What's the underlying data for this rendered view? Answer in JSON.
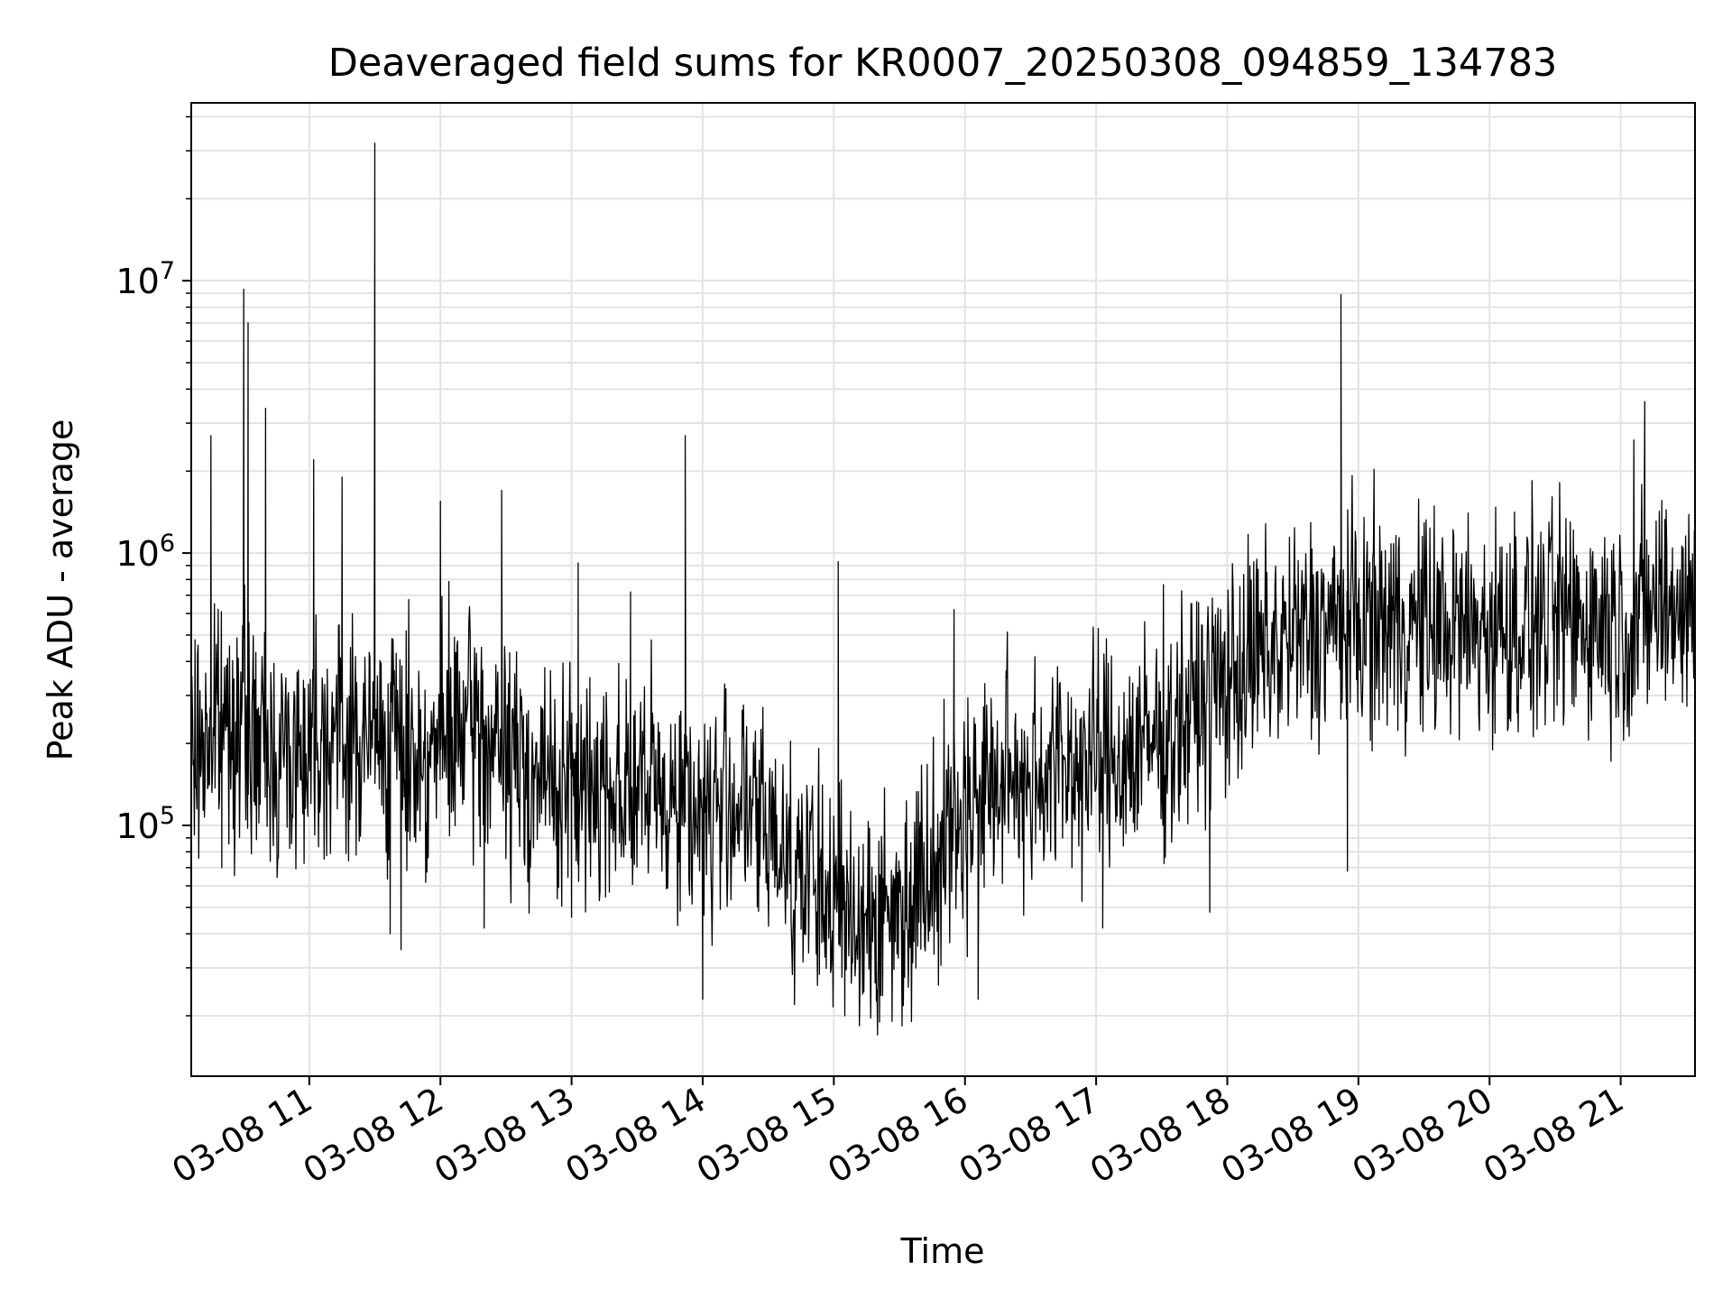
{
  "chart_data": {
    "type": "line",
    "title": "Deaveraged field sums for KR0007_20250308_094859_134783",
    "xlabel": "Time",
    "ylabel": "Peak ADU - average",
    "yscale": "log",
    "ylim": [
      12000,
      45000000
    ],
    "xlim": [
      "2025-03-08T10:06",
      "2025-03-08T21:34"
    ],
    "x_tick_labels": [
      "03-08 11",
      "03-08 12",
      "03-08 13",
      "03-08 14",
      "03-08 15",
      "03-08 16",
      "03-08 17",
      "03-08 18",
      "03-08 19",
      "03-08 20",
      "03-08 21"
    ],
    "x_tick_times": [
      "2025-03-08T11:00",
      "2025-03-08T12:00",
      "2025-03-08T13:00",
      "2025-03-08T14:00",
      "2025-03-08T15:00",
      "2025-03-08T16:00",
      "2025-03-08T17:00",
      "2025-03-08T18:00",
      "2025-03-08T19:00",
      "2025-03-08T20:00",
      "2025-03-08T21:00"
    ],
    "y_tick_labels": [
      {
        "base": "10",
        "exp": "5",
        "value": 100000
      },
      {
        "base": "10",
        "exp": "6",
        "value": 1000000
      },
      {
        "base": "10",
        "exp": "7",
        "value": 10000000
      }
    ],
    "grid": true,
    "series": [
      {
        "color": "#000000",
        "x": [
          "2025-03-08T10:06",
          "2025-03-08T10:15",
          "2025-03-08T10:25",
          "2025-03-08T10:35",
          "2025-03-08T10:45",
          "2025-03-08T10:55",
          "2025-03-08T11:05",
          "2025-03-08T11:15",
          "2025-03-08T11:25",
          "2025-03-08T11:35",
          "2025-03-08T11:45",
          "2025-03-08T11:55",
          "2025-03-08T12:05",
          "2025-03-08T12:15",
          "2025-03-08T12:25",
          "2025-03-08T12:35",
          "2025-03-08T12:45",
          "2025-03-08T12:55",
          "2025-03-08T13:05",
          "2025-03-08T13:15",
          "2025-03-08T13:25",
          "2025-03-08T13:35",
          "2025-03-08T13:45",
          "2025-03-08T13:55",
          "2025-03-08T14:05",
          "2025-03-08T14:15",
          "2025-03-08T14:25",
          "2025-03-08T14:35",
          "2025-03-08T14:45",
          "2025-03-08T14:55",
          "2025-03-08T15:05",
          "2025-03-08T15:15",
          "2025-03-08T15:25",
          "2025-03-08T15:35",
          "2025-03-08T15:45",
          "2025-03-08T15:55",
          "2025-03-08T16:05",
          "2025-03-08T16:15",
          "2025-03-08T16:25",
          "2025-03-08T16:35",
          "2025-03-08T16:45",
          "2025-03-08T16:55",
          "2025-03-08T17:05",
          "2025-03-08T17:15",
          "2025-03-08T17:25",
          "2025-03-08T17:35",
          "2025-03-08T17:45",
          "2025-03-08T17:55",
          "2025-03-08T18:05",
          "2025-03-08T18:15",
          "2025-03-08T18:25",
          "2025-03-08T18:35",
          "2025-03-08T18:45",
          "2025-03-08T18:55",
          "2025-03-08T19:05",
          "2025-03-08T19:15",
          "2025-03-08T19:25",
          "2025-03-08T19:35",
          "2025-03-08T19:45",
          "2025-03-08T19:55",
          "2025-03-08T20:05",
          "2025-03-08T20:15",
          "2025-03-08T20:25",
          "2025-03-08T20:35",
          "2025-03-08T20:45",
          "2025-03-08T20:55",
          "2025-03-08T21:05",
          "2025-03-08T21:15",
          "2025-03-08T21:25",
          "2025-03-08T21:34"
        ],
        "y": [
          180000,
          220000,
          260000,
          200000,
          180000,
          190000,
          230000,
          210000,
          200000,
          220000,
          190000,
          180000,
          210000,
          230000,
          190000,
          170000,
          150000,
          140000,
          130000,
          150000,
          140000,
          130000,
          135000,
          120000,
          110000,
          130000,
          100000,
          90000,
          70000,
          55000,
          50000,
          48000,
          45000,
          55000,
          80000,
          100000,
          130000,
          140000,
          150000,
          160000,
          165000,
          170000,
          175000,
          180000,
          200000,
          230000,
          270000,
          320000,
          370000,
          420000,
          460000,
          500000,
          540000,
          560000,
          570000,
          560000,
          550000,
          540000,
          530000,
          520000,
          540000,
          550000,
          560000,
          570000,
          580000,
          560000,
          550000,
          640000,
          660000,
          620000
        ]
      }
    ],
    "spikes": [
      {
        "x": "2025-03-08T10:15",
        "y": 2700000
      },
      {
        "x": "2025-03-08T10:30",
        "y": 9300000
      },
      {
        "x": "2025-03-08T10:32",
        "y": 7000000
      },
      {
        "x": "2025-03-08T10:40",
        "y": 3400000
      },
      {
        "x": "2025-03-08T11:02",
        "y": 2200000
      },
      {
        "x": "2025-03-08T11:15",
        "y": 1900000
      },
      {
        "x": "2025-03-08T11:30",
        "y": 32000000
      },
      {
        "x": "2025-03-08T12:00",
        "y": 1550000
      },
      {
        "x": "2025-03-08T12:28",
        "y": 1700000
      },
      {
        "x": "2025-03-08T13:03",
        "y": 920000
      },
      {
        "x": "2025-03-08T13:27",
        "y": 720000
      },
      {
        "x": "2025-03-08T13:52",
        "y": 2700000
      },
      {
        "x": "2025-03-08T15:02",
        "y": 930000
      },
      {
        "x": "2025-03-08T15:55",
        "y": 620000
      },
      {
        "x": "2025-03-08T18:52",
        "y": 8900000
      },
      {
        "x": "2025-03-08T21:06",
        "y": 2600000
      },
      {
        "x": "2025-03-08T21:11",
        "y": 3600000
      }
    ],
    "dips": [
      {
        "x": "2025-03-08T10:20",
        "y": 70000
      },
      {
        "x": "2025-03-08T11:37",
        "y": 40000
      },
      {
        "x": "2025-03-08T11:42",
        "y": 35000
      },
      {
        "x": "2025-03-08T12:20",
        "y": 42000
      },
      {
        "x": "2025-03-08T13:00",
        "y": 46000
      },
      {
        "x": "2025-03-08T14:00",
        "y": 23000
      },
      {
        "x": "2025-03-08T14:42",
        "y": 22000
      },
      {
        "x": "2025-03-08T15:05",
        "y": 20000
      },
      {
        "x": "2025-03-08T15:20",
        "y": 17000
      },
      {
        "x": "2025-03-08T16:06",
        "y": 23000
      },
      {
        "x": "2025-03-08T17:03",
        "y": 42000
      },
      {
        "x": "2025-03-08T17:52",
        "y": 48000
      },
      {
        "x": "2025-03-08T18:55",
        "y": 68000
      }
    ]
  }
}
